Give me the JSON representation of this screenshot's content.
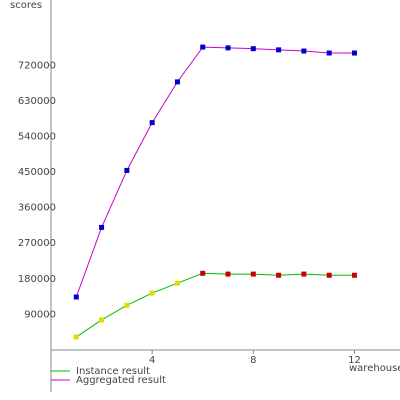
{
  "chart_data": {
    "type": "line",
    "y_label": "scores",
    "x_label": "warehouses",
    "xlim": [
      0,
      13.8
    ],
    "xticks": [
      4,
      8,
      12
    ],
    "ylim": [
      0,
      880000
    ],
    "yticks": [
      90000,
      180000,
      270000,
      360000,
      450000,
      540000,
      630000,
      720000
    ],
    "grid": false,
    "legend": "bottom-left",
    "series": [
      {
        "name": "Instance result",
        "color": "#00bb00",
        "marker_colors": [
          "#dddd00",
          "#dddd00",
          "#dddd00",
          "#dddd00",
          "#dddd00",
          "#cc0000",
          "#cc0000",
          "#cc0000",
          "#cc0000",
          "#cc0000",
          "#cc0000",
          "#cc0000"
        ],
        "x": [
          1,
          2,
          3,
          4,
          5,
          6,
          7,
          8,
          9,
          10,
          11,
          12
        ],
        "values": [
          33000,
          76000,
          113000,
          144000,
          169000,
          194000,
          192000,
          192000,
          189000,
          192000,
          189000,
          189000
        ]
      },
      {
        "name": "Aggregated result",
        "color": "#cc00cc",
        "marker_colors": [
          "#0000cc",
          "#0000cc",
          "#0000cc",
          "#0000cc",
          "#0000cc",
          "#0000cc",
          "#0000cc",
          "#0000cc",
          "#0000cc",
          "#0000cc",
          "#0000cc",
          "#0000cc"
        ],
        "x": [
          1,
          2,
          3,
          4,
          5,
          6,
          7,
          8,
          9,
          10,
          11,
          12
        ],
        "values": [
          134000,
          310000,
          454000,
          575000,
          678000,
          766000,
          764000,
          762000,
          759000,
          756000,
          751000,
          751000
        ]
      }
    ]
  }
}
